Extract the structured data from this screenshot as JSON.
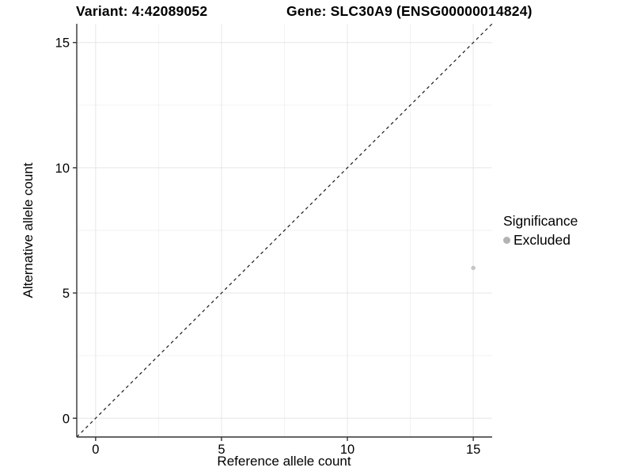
{
  "chart_data": {
    "type": "scatter",
    "titles": {
      "left": "Variant: 4:42089052",
      "right": "Gene: SLC30A9 (ENSG00000014824)"
    },
    "xlabel": "Reference allele count",
    "ylabel": "Alternative allele count",
    "xlim": [
      -0.75,
      15.75
    ],
    "ylim": [
      -0.75,
      15.75
    ],
    "x_major_ticks": [
      0,
      5,
      10,
      15
    ],
    "y_major_ticks": [
      0,
      5,
      10,
      15
    ],
    "x_minor_ticks": [
      2.5,
      7.5,
      12.5
    ],
    "y_minor_ticks": [
      2.5,
      7.5,
      12.5
    ],
    "grid": "major+minor",
    "reference_line": {
      "style": "dashed",
      "equation": "y = x",
      "color": "#1a1a1a"
    },
    "series": [
      {
        "name": "Excluded",
        "color": "#c6c6c6",
        "points": [
          {
            "x": 15,
            "y": 6
          }
        ]
      }
    ],
    "legend": {
      "position": "right",
      "title": "Significance",
      "entries": [
        {
          "label": "Excluded",
          "color": "#b3b3b3"
        }
      ]
    },
    "colors": {
      "background": "#ffffff",
      "grid_major": "#e6e6e6",
      "grid_minor": "#f2f2f2",
      "axis_line": "#333333",
      "text": "#000000"
    }
  }
}
